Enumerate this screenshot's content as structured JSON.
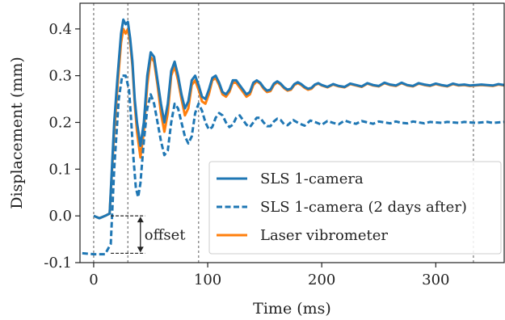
{
  "chart_data": {
    "type": "line",
    "title": "",
    "xlabel": "Time (ms)",
    "ylabel": "Displacement (mm)",
    "xlim": [
      -12,
      360
    ],
    "ylim": [
      -0.1,
      0.455
    ],
    "x_ticks": [
      0,
      100,
      200,
      300
    ],
    "x_tick_labels": [
      "0",
      "100",
      "200",
      "300"
    ],
    "y_ticks": [
      -0.1,
      0.0,
      0.1,
      0.2,
      0.3,
      0.4
    ],
    "y_tick_labels": [
      "-0.1",
      "0.0",
      "0.1",
      "0.2",
      "0.3",
      "0.4"
    ],
    "grid": false,
    "vertical_reference_lines_x": [
      0,
      30,
      92,
      333
    ],
    "legend_position": "bottom-right",
    "annotation": {
      "text": "offset",
      "from_y": 0.0,
      "to_y": -0.08,
      "x_start": 15,
      "x_end": 45,
      "arrow_x": 41
    },
    "series": [
      {
        "name": "SLS 1-camera",
        "color": "#1f77b4",
        "style": "solid",
        "x": [
          0,
          5,
          10,
          14,
          18,
          21,
          24,
          26,
          28,
          30,
          32,
          34,
          36,
          38,
          41,
          44,
          47,
          50,
          53,
          56,
          59,
          62,
          65,
          68,
          71,
          74,
          77,
          80,
          83,
          86,
          89,
          92,
          95,
          98,
          101,
          104,
          107,
          110,
          113,
          116,
          119,
          122,
          125,
          128,
          131,
          134,
          137,
          140,
          143,
          146,
          149,
          152,
          155,
          158,
          161,
          164,
          167,
          170,
          173,
          176,
          179,
          182,
          185,
          188,
          191,
          194,
          197,
          200,
          205,
          210,
          215,
          220,
          225,
          230,
          235,
          240,
          245,
          250,
          255,
          260,
          265,
          270,
          275,
          280,
          285,
          290,
          295,
          300,
          305,
          310,
          315,
          320,
          325,
          330,
          335,
          340,
          345,
          350,
          355,
          360
        ],
        "y": [
          0.0,
          -0.005,
          0.0,
          0.005,
          0.2,
          0.3,
          0.39,
          0.42,
          0.41,
          0.415,
          0.38,
          0.33,
          0.25,
          0.2,
          0.15,
          0.2,
          0.3,
          0.35,
          0.34,
          0.29,
          0.24,
          0.2,
          0.24,
          0.31,
          0.33,
          0.3,
          0.26,
          0.23,
          0.245,
          0.29,
          0.3,
          0.28,
          0.255,
          0.25,
          0.27,
          0.295,
          0.3,
          0.285,
          0.265,
          0.26,
          0.27,
          0.29,
          0.29,
          0.28,
          0.27,
          0.26,
          0.265,
          0.285,
          0.29,
          0.285,
          0.275,
          0.268,
          0.27,
          0.283,
          0.288,
          0.283,
          0.275,
          0.27,
          0.272,
          0.282,
          0.286,
          0.282,
          0.276,
          0.272,
          0.274,
          0.281,
          0.284,
          0.28,
          0.276,
          0.282,
          0.278,
          0.276,
          0.283,
          0.28,
          0.277,
          0.284,
          0.28,
          0.278,
          0.285,
          0.281,
          0.279,
          0.285,
          0.28,
          0.278,
          0.284,
          0.281,
          0.279,
          0.283,
          0.28,
          0.278,
          0.283,
          0.28,
          0.281,
          0.279,
          0.28,
          0.281,
          0.28,
          0.279,
          0.282,
          0.28
        ]
      },
      {
        "name": "SLS 1-camera (2 days after)",
        "color": "#1f77b4",
        "style": "dashed",
        "x": [
          -10,
          0,
          10,
          15,
          18,
          22,
          25,
          28,
          31,
          33,
          35,
          37,
          39,
          41,
          44,
          47,
          50,
          53,
          56,
          59,
          62,
          65,
          68,
          71,
          74,
          77,
          80,
          83,
          86,
          89,
          92,
          95,
          98,
          101,
          104,
          107,
          110,
          113,
          116,
          119,
          122,
          125,
          128,
          131,
          134,
          137,
          140,
          143,
          146,
          149,
          152,
          155,
          158,
          161,
          164,
          167,
          170,
          175,
          180,
          185,
          190,
          195,
          200,
          205,
          210,
          215,
          220,
          225,
          230,
          235,
          240,
          245,
          250,
          255,
          260,
          265,
          270,
          275,
          280,
          285,
          290,
          295,
          300,
          305,
          310,
          315,
          320,
          325,
          330,
          335,
          340,
          345,
          350,
          355,
          360
        ],
        "y": [
          -0.08,
          -0.082,
          -0.082,
          -0.06,
          0.1,
          0.25,
          0.3,
          0.3,
          0.27,
          0.2,
          0.12,
          0.06,
          0.04,
          0.07,
          0.16,
          0.23,
          0.26,
          0.24,
          0.2,
          0.16,
          0.13,
          0.14,
          0.2,
          0.24,
          0.23,
          0.2,
          0.17,
          0.155,
          0.17,
          0.22,
          0.24,
          0.225,
          0.2,
          0.185,
          0.19,
          0.21,
          0.22,
          0.215,
          0.2,
          0.19,
          0.195,
          0.21,
          0.215,
          0.205,
          0.195,
          0.19,
          0.2,
          0.21,
          0.21,
          0.2,
          0.192,
          0.192,
          0.202,
          0.208,
          0.205,
          0.196,
          0.194,
          0.205,
          0.198,
          0.193,
          0.204,
          0.2,
          0.195,
          0.203,
          0.199,
          0.196,
          0.204,
          0.2,
          0.197,
          0.203,
          0.2,
          0.197,
          0.202,
          0.2,
          0.198,
          0.202,
          0.199,
          0.198,
          0.202,
          0.2,
          0.198,
          0.201,
          0.2,
          0.199,
          0.201,
          0.2,
          0.199,
          0.201,
          0.2,
          0.199,
          0.2,
          0.201,
          0.199,
          0.2,
          0.201
        ]
      },
      {
        "name": "Laser vibrometer",
        "color": "#ff7f0e",
        "style": "solid",
        "x": [
          0,
          5,
          10,
          14,
          18,
          21,
          24,
          26,
          28,
          30,
          32,
          34,
          36,
          38,
          41,
          44,
          47,
          50,
          53,
          56,
          59,
          62,
          65,
          68,
          71,
          74,
          77,
          80,
          83,
          86,
          89,
          92,
          95,
          98,
          101,
          104,
          107,
          110,
          113,
          116,
          119,
          122,
          125,
          128,
          131,
          134,
          137,
          140,
          143,
          146,
          149,
          152,
          155,
          158,
          161,
          164,
          167,
          170,
          173,
          176,
          179,
          182,
          185,
          188,
          191,
          194,
          197,
          200,
          205,
          210,
          215,
          220,
          225,
          230,
          235,
          240,
          245,
          250,
          255,
          260,
          265,
          270,
          275,
          280,
          285,
          290,
          295,
          300,
          305,
          310,
          315,
          320,
          325,
          330,
          335,
          340,
          345,
          350,
          355,
          360
        ],
        "y": [
          0.0,
          -0.005,
          0.0,
          0.005,
          0.18,
          0.28,
          0.37,
          0.4,
          0.39,
          0.4,
          0.37,
          0.32,
          0.24,
          0.18,
          0.125,
          0.18,
          0.28,
          0.34,
          0.33,
          0.28,
          0.22,
          0.18,
          0.22,
          0.3,
          0.32,
          0.29,
          0.25,
          0.215,
          0.23,
          0.28,
          0.29,
          0.27,
          0.245,
          0.24,
          0.26,
          0.29,
          0.295,
          0.28,
          0.26,
          0.255,
          0.265,
          0.285,
          0.285,
          0.275,
          0.265,
          0.255,
          0.26,
          0.28,
          0.288,
          0.283,
          0.272,
          0.265,
          0.267,
          0.28,
          0.286,
          0.281,
          0.273,
          0.268,
          0.27,
          0.28,
          0.284,
          0.28,
          0.274,
          0.27,
          0.272,
          0.28,
          0.283,
          0.279,
          0.275,
          0.281,
          0.277,
          0.275,
          0.282,
          0.279,
          0.276,
          0.283,
          0.279,
          0.277,
          0.284,
          0.28,
          0.278,
          0.284,
          0.279,
          0.277,
          0.283,
          0.28,
          0.278,
          0.282,
          0.279,
          0.277,
          0.282,
          0.279,
          0.28,
          0.278,
          0.279,
          0.28,
          0.279,
          0.278,
          0.281,
          0.279
        ]
      }
    ]
  }
}
